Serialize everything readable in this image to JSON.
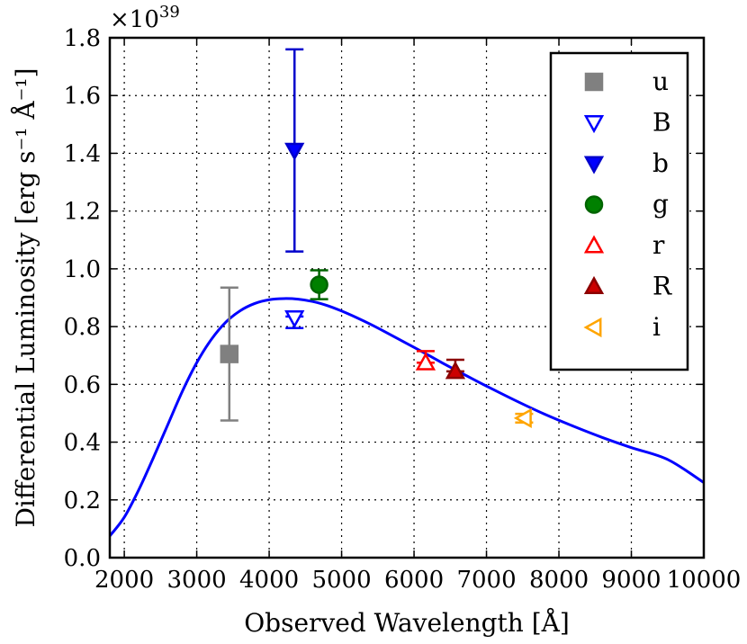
{
  "chart_data": {
    "type": "scatter",
    "xlabel": "Observed Wavelength [Å]",
    "ylabel": "Differential Luminosity [erg s⁻¹ Å⁻¹]",
    "y_multiplier": "×10",
    "y_multiplier_exponent": "39",
    "xlim": [
      1800,
      10000
    ],
    "ylim": [
      0.0,
      1.8
    ],
    "x_ticks": [
      2000,
      3000,
      4000,
      5000,
      6000,
      7000,
      8000,
      9000,
      10000
    ],
    "y_ticks": [
      0.0,
      0.2,
      0.4,
      0.6,
      0.8,
      1.0,
      1.2,
      1.4,
      1.6,
      1.8
    ],
    "x_tick_labels": [
      "2000",
      "3000",
      "4000",
      "5000",
      "6000",
      "7000",
      "8000",
      "9000",
      "10000"
    ],
    "y_tick_labels": [
      "0.0",
      "0.2",
      "0.4",
      "0.6",
      "0.8",
      "1.0",
      "1.2",
      "1.4",
      "1.6",
      "1.8"
    ],
    "grid": true,
    "legend_position": "top-right",
    "series": [
      {
        "name": "u",
        "marker": "square",
        "color": "#808080",
        "fill": "#808080",
        "x": 3450,
        "y": 0.705,
        "yerr": [
          0.475,
          0.935
        ]
      },
      {
        "name": "B",
        "marker": "triangle-down",
        "color": "#0000ff",
        "fill": "#ffffff",
        "x": 4350,
        "y": 0.83,
        "yerr": [
          0.795,
          0.835
        ]
      },
      {
        "name": "b",
        "marker": "triangle-down",
        "color": "#0000cc",
        "fill": "#0000ff",
        "x": 4350,
        "y": 1.41,
        "yerr": [
          1.06,
          1.76
        ]
      },
      {
        "name": "g",
        "marker": "circle",
        "color": "#006400",
        "fill": "#008000",
        "x": 4690,
        "y": 0.945,
        "yerr": [
          0.895,
          0.995
        ]
      },
      {
        "name": "r",
        "marker": "triangle-up",
        "color": "#ff0000",
        "fill": "#ffffff",
        "x": 6160,
        "y": 0.675,
        "yerr": [
          0.675,
          0.715
        ]
      },
      {
        "name": "R",
        "marker": "triangle-up",
        "color": "#8b0000",
        "fill": "#cc0000",
        "x": 6570,
        "y": 0.645,
        "yerr": [
          0.645,
          0.685
        ]
      },
      {
        "name": "i",
        "marker": "triangle-left",
        "color": "#ffa500",
        "fill": "#ffffff",
        "x": 7520,
        "y": 0.483,
        "yerr": [
          0.468,
          0.498
        ]
      }
    ],
    "model_curve": {
      "color": "#0000ff",
      "x": [
        1800,
        2000,
        2200,
        2400,
        2600,
        2800,
        3000,
        3200,
        3400,
        3600,
        3800,
        4000,
        4200,
        4400,
        4600,
        4800,
        5000,
        5200,
        5400,
        5600,
        5800,
        6000,
        6200,
        6400,
        6600,
        6800,
        7000,
        7400,
        7800,
        8200,
        8600,
        9000,
        9500,
        10000
      ],
      "y": [
        0.075,
        0.14,
        0.235,
        0.345,
        0.46,
        0.575,
        0.675,
        0.755,
        0.815,
        0.855,
        0.88,
        0.893,
        0.897,
        0.895,
        0.887,
        0.873,
        0.854,
        0.832,
        0.808,
        0.782,
        0.755,
        0.728,
        0.701,
        0.673,
        0.646,
        0.62,
        0.594,
        0.544,
        0.497,
        0.455,
        0.416,
        0.381,
        0.34,
        0.26
      ]
    }
  }
}
